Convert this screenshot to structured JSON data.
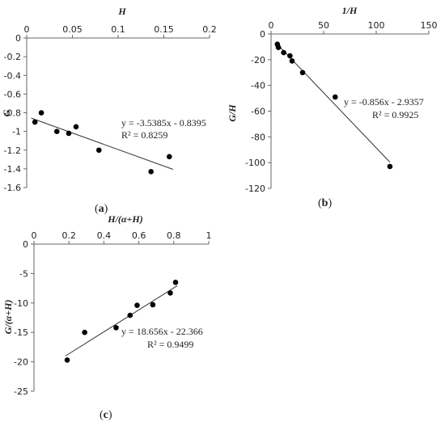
{
  "chart_data": [
    {
      "type": "scatter",
      "panel_label": "a",
      "xlabel": "H",
      "ylabel": "G",
      "xlim": [
        0,
        0.2
      ],
      "ylim": [
        -1.6,
        0
      ],
      "xticks": [
        0,
        0.05,
        0.1,
        0.15,
        0.2
      ],
      "xtick_labels": [
        "0",
        "0.05",
        "0.1",
        "0.15",
        "0.2"
      ],
      "yticks": [
        0,
        -0.2,
        -0.4,
        -0.6,
        -0.8,
        -1,
        -1.2,
        -1.4,
        -1.6
      ],
      "ytick_labels": [
        "0",
        "-0.2",
        "-0.4",
        "-0.6",
        "-0.8",
        "-1",
        "-1.2",
        "-1.4",
        "-1.6"
      ],
      "x_axis_position": "top",
      "points": [
        {
          "x": 0.009,
          "y": -0.9
        },
        {
          "x": 0.016,
          "y": -0.8
        },
        {
          "x": 0.033,
          "y": -1.0
        },
        {
          "x": 0.046,
          "y": -1.02
        },
        {
          "x": 0.054,
          "y": -0.95
        },
        {
          "x": 0.079,
          "y": -1.2
        },
        {
          "x": 0.136,
          "y": -1.43
        },
        {
          "x": 0.156,
          "y": -1.27
        }
      ],
      "trendline": {
        "slope": -3.5385,
        "intercept": -0.8395,
        "x_range": [
          0.005,
          0.16
        ]
      },
      "equation": "y = -3.5385x - 0.8395",
      "r2": "R² = 0.8259",
      "grid": false
    },
    {
      "type": "scatter",
      "panel_label": "b",
      "xlabel": "1/H",
      "ylabel": "G/H",
      "xlim": [
        0,
        150
      ],
      "ylim": [
        -120,
        0
      ],
      "xticks": [
        0,
        50,
        100,
        150
      ],
      "xtick_labels": [
        "0",
        "50",
        "100",
        "150"
      ],
      "yticks": [
        0,
        -20,
        -40,
        -60,
        -80,
        -100,
        -120
      ],
      "ytick_labels": [
        "0",
        "-20",
        "-40",
        "-60",
        "-80",
        "-100",
        "-120"
      ],
      "x_axis_position": "top",
      "points": [
        {
          "x": 6,
          "y": -8
        },
        {
          "x": 7,
          "y": -10.5
        },
        {
          "x": 12,
          "y": -14.5
        },
        {
          "x": 18,
          "y": -17
        },
        {
          "x": 20,
          "y": -21
        },
        {
          "x": 30,
          "y": -30
        },
        {
          "x": 61,
          "y": -49
        },
        {
          "x": 113,
          "y": -103
        }
      ],
      "trendline": {
        "slope": -0.856,
        "intercept": -2.9357,
        "x_range": [
          5,
          113
        ]
      },
      "equation": "y = -0.856x - 2.9357",
      "r2": "R² = 0.9925",
      "grid": false
    },
    {
      "type": "scatter",
      "panel_label": "c",
      "xlabel": "H/(α+H)",
      "ylabel": "G/(α+H)",
      "xlim": [
        0,
        1
      ],
      "ylim": [
        -25,
        0
      ],
      "xticks": [
        0,
        0.2,
        0.4,
        0.6,
        0.8,
        1
      ],
      "xtick_labels": [
        "0",
        "0.2",
        "0.4",
        "0.6",
        "0.8",
        "1"
      ],
      "yticks": [
        0,
        -5,
        -10,
        -15,
        -20,
        -25
      ],
      "ytick_labels": [
        "0",
        "-5",
        "-10",
        "-15",
        "-20",
        "-25"
      ],
      "x_axis_position": "top",
      "points": [
        {
          "x": 0.19,
          "y": -19.7
        },
        {
          "x": 0.29,
          "y": -15.0
        },
        {
          "x": 0.47,
          "y": -14.2
        },
        {
          "x": 0.55,
          "y": -12.1
        },
        {
          "x": 0.59,
          "y": -10.4
        },
        {
          "x": 0.68,
          "y": -10.3
        },
        {
          "x": 0.78,
          "y": -8.3
        },
        {
          "x": 0.81,
          "y": -6.5
        }
      ],
      "trendline": {
        "slope": 18.656,
        "intercept": -22.366,
        "x_range": [
          0.18,
          0.82
        ]
      },
      "equation": "y = 18.656x - 22.366",
      "r2": "R² = 0.9499",
      "grid": false
    }
  ]
}
